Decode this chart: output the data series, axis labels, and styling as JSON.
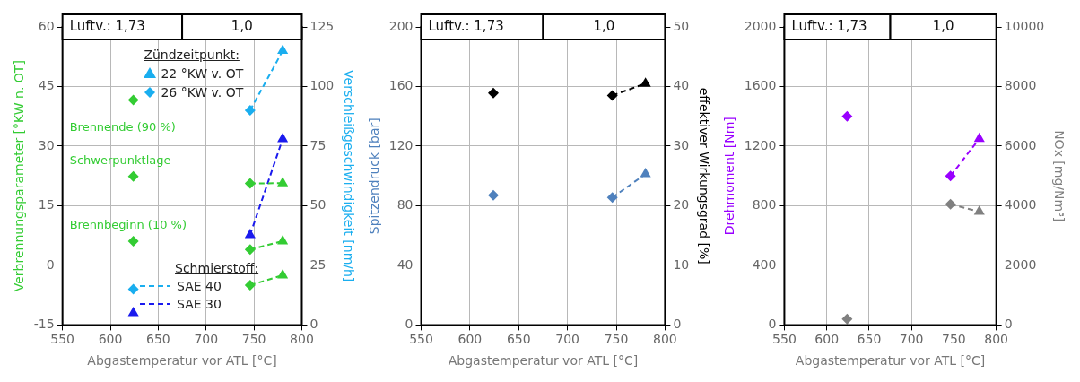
{
  "chart_data": [
    {
      "type": "scatter",
      "xlabel": "Abgastemperatur vor ATL [°C]",
      "ylabel": "Verbrennungsparameter [°KW n. OT]",
      "y2label": "Verschleißgeschwindigkeit [nm/h]",
      "xlim": [
        550,
        800
      ],
      "xticks": [
        550,
        600,
        650,
        700,
        750,
        800
      ],
      "ylim": [
        -15,
        60
      ],
      "yticks": [
        -15,
        0,
        15,
        30,
        45,
        60
      ],
      "y2lim": [
        0,
        125
      ],
      "y2ticks": [
        0,
        25,
        50,
        75,
        100,
        125
      ],
      "grid": true,
      "legend": "bottom",
      "bands": [
        {
          "axis": "x",
          "from": 550,
          "to": 675,
          "label": "Luftv.: 1,73"
        },
        {
          "axis": "x",
          "from": 675,
          "to": 800,
          "label": "1,0"
        }
      ],
      "annotations": [
        "Zündzeitpunkt:",
        "Schmierstoff:",
        "Brennende (90 %)",
        "Schwerpunktlage",
        "Brennbeginn (10 %)"
      ],
      "series": [
        {
          "type": "scatter",
          "axis": "y",
          "color": "#33cc33",
          "marker": "diamond",
          "x": [
            624,
            746,
            624,
            746,
            624,
            746
          ],
          "values": [
            41.6,
            20.6,
            22.4,
            4.0,
            6.1,
            -5.0
          ]
        },
        {
          "type": "scatter",
          "axis": "y",
          "color": "#33cc33",
          "marker": "triangle",
          "x": [
            780,
            780,
            780
          ],
          "values": [
            20.7,
            6.1,
            -2.5
          ]
        },
        {
          "type": "line",
          "axis": "y",
          "color": "#33cc33",
          "marker": "none",
          "line_style": "dashed",
          "x": [
            746,
            780
          ],
          "values": [
            20.6,
            20.7
          ]
        },
        {
          "type": "line",
          "axis": "y",
          "color": "#33cc33",
          "marker": "none",
          "line_style": "dashed",
          "x": [
            746,
            780
          ],
          "values": [
            4.0,
            6.1
          ]
        },
        {
          "type": "line",
          "axis": "y",
          "color": "#33cc33",
          "marker": "none",
          "line_style": "dashed",
          "x": [
            746,
            780
          ],
          "values": [
            -5.0,
            -2.5
          ]
        },
        {
          "type": "scatter",
          "axis": "y2",
          "name": "22 °KW v. OT",
          "color": "#1aaeef",
          "marker": "triangle",
          "x": [
            780
          ],
          "values": [
            115
          ]
        },
        {
          "type": "scatter",
          "axis": "y2",
          "name": "26 °KW v. OT",
          "color": "#1aaeef",
          "marker": "diamond",
          "x": [
            624,
            746
          ],
          "values": [
            15,
            90
          ]
        },
        {
          "type": "scatter",
          "axis": "y2",
          "color": "#1a1aee",
          "marker": "triangle",
          "x": [
            624,
            746,
            780
          ],
          "values": [
            5,
            37.8,
            78
          ]
        },
        {
          "type": "line",
          "axis": "y2",
          "name": "SAE 40",
          "color": "#1aaeef",
          "marker": "none",
          "line_style": "dashed",
          "x": [
            746,
            780
          ],
          "values": [
            90,
            115
          ]
        },
        {
          "type": "line",
          "axis": "y2",
          "name": "SAE 30",
          "color": "#1a1aee",
          "marker": "none",
          "line_style": "dashed",
          "x": [
            746,
            780
          ],
          "values": [
            37.8,
            78
          ]
        }
      ]
    },
    {
      "type": "scatter",
      "xlabel": "Abgastemperatur vor ATL [°C]",
      "ylabel": "Spitzendruck [bar]",
      "y2label": "effektiver Wirkungsgrad [%]",
      "xlim": [
        550,
        800
      ],
      "xticks": [
        550,
        600,
        650,
        700,
        750,
        800
      ],
      "ylim": [
        0,
        200
      ],
      "yticks": [
        0,
        40,
        80,
        120,
        160,
        200
      ],
      "y2lim": [
        0,
        50
      ],
      "y2ticks": [
        0,
        10,
        20,
        30,
        40,
        50
      ],
      "grid": true,
      "bands": [
        {
          "axis": "x",
          "from": 550,
          "to": 675,
          "label": "Luftv.: 1,73"
        },
        {
          "axis": "x",
          "from": 675,
          "to": 800,
          "label": "1,0"
        }
      ],
      "series": [
        {
          "type": "scatter",
          "axis": "y",
          "color": "#4f81bd",
          "marker": "diamond",
          "x": [
            624,
            746
          ],
          "values": [
            87,
            85.5
          ]
        },
        {
          "type": "scatter",
          "axis": "y",
          "color": "#4f81bd",
          "marker": "triangle",
          "x": [
            780
          ],
          "values": [
            101.3
          ]
        },
        {
          "type": "line",
          "axis": "y",
          "color": "#4f81bd",
          "marker": "none",
          "line_style": "dashed",
          "x": [
            746,
            780
          ],
          "values": [
            85.5,
            101.3
          ]
        },
        {
          "type": "scatter",
          "axis": "y2",
          "color": "#000000",
          "marker": "diamond",
          "x": [
            624,
            746
          ],
          "values": [
            38.9,
            38.5
          ]
        },
        {
          "type": "scatter",
          "axis": "y2",
          "color": "#000000",
          "marker": "triangle",
          "x": [
            780
          ],
          "values": [
            40.5
          ]
        },
        {
          "type": "line",
          "axis": "y2",
          "color": "#000000",
          "marker": "none",
          "line_style": "dashed",
          "x": [
            746,
            780
          ],
          "values": [
            38.5,
            40.5
          ]
        }
      ]
    },
    {
      "type": "scatter",
      "xlabel": "Abgastemperatur vor ATL [°C]",
      "ylabel": "Drehmoment [Nm]",
      "y2label": "NOx [mg/Nm³]",
      "xlim": [
        550,
        800
      ],
      "xticks": [
        550,
        600,
        650,
        700,
        750,
        800
      ],
      "ylim": [
        0,
        2000
      ],
      "yticks": [
        0,
        400,
        800,
        1200,
        1600,
        2000
      ],
      "y2lim": [
        0,
        10000
      ],
      "y2ticks": [
        0,
        2000,
        4000,
        6000,
        8000,
        10000
      ],
      "grid": true,
      "bands": [
        {
          "axis": "x",
          "from": 550,
          "to": 675,
          "label": "Luftv.: 1,73"
        },
        {
          "axis": "x",
          "from": 675,
          "to": 800,
          "label": "1,0"
        }
      ],
      "series": [
        {
          "type": "scatter",
          "axis": "y",
          "color": "#9900ff",
          "marker": "diamond",
          "x": [
            624,
            746
          ],
          "values": [
            1400,
            1000
          ]
        },
        {
          "type": "scatter",
          "axis": "y",
          "color": "#9900ff",
          "marker": "triangle",
          "x": [
            780
          ],
          "values": [
            1250
          ]
        },
        {
          "type": "line",
          "axis": "y",
          "color": "#9900ff",
          "marker": "none",
          "line_style": "dashed",
          "x": [
            746,
            780
          ],
          "values": [
            1000,
            1250
          ]
        },
        {
          "type": "scatter",
          "axis": "y2",
          "color": "#808080",
          "marker": "diamond",
          "x": [
            624,
            746
          ],
          "values": [
            200,
            4050
          ]
        },
        {
          "type": "scatter",
          "axis": "y2",
          "color": "#808080",
          "marker": "triangle",
          "x": [
            780
          ],
          "values": [
            3800
          ]
        },
        {
          "type": "line",
          "axis": "y2",
          "color": "#808080",
          "marker": "none",
          "line_style": "dashed",
          "x": [
            746,
            780
          ],
          "values": [
            4050,
            3800
          ]
        }
      ]
    }
  ]
}
